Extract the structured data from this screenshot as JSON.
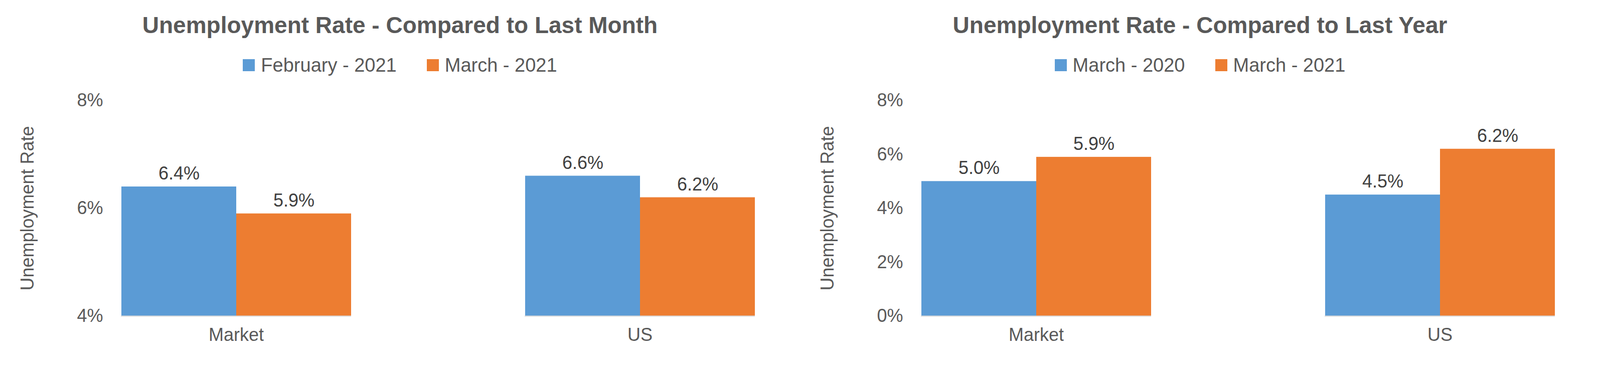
{
  "chart_data": [
    {
      "type": "bar",
      "title": "Unemployment Rate - Compared to Last Month",
      "y_label": "Unemployment Rate",
      "categories": [
        "Market",
        "US"
      ],
      "series": [
        {
          "name": "February - 2021",
          "color": "#5b9bd5",
          "values": [
            6.4,
            6.6
          ],
          "value_labels": [
            "6.4%",
            "6.6%"
          ]
        },
        {
          "name": "March - 2021",
          "color": "#ed7d31",
          "values": [
            5.9,
            6.2
          ],
          "value_labels": [
            "5.9%",
            "6.2%"
          ]
        }
      ],
      "ylim": [
        4,
        8
      ],
      "yticks": [
        {
          "value": 4,
          "label": "4%"
        },
        {
          "value": 6,
          "label": "6%"
        },
        {
          "value": 8,
          "label": "8%"
        }
      ],
      "grid": false,
      "legend": "top",
      "data_labels": true
    },
    {
      "type": "bar",
      "title": "Unemployment Rate - Compared to Last Year",
      "y_label": "Unemployment Rate",
      "categories": [
        "Market",
        "US"
      ],
      "series": [
        {
          "name": "March - 2020",
          "color": "#5b9bd5",
          "values": [
            5.0,
            4.5
          ],
          "value_labels": [
            "5.0%",
            "4.5%"
          ]
        },
        {
          "name": "March - 2021",
          "color": "#ed7d31",
          "values": [
            5.9,
            6.2
          ],
          "value_labels": [
            "5.9%",
            "6.2%"
          ]
        }
      ],
      "ylim": [
        0,
        8
      ],
      "yticks": [
        {
          "value": 0,
          "label": "0%"
        },
        {
          "value": 2,
          "label": "2%"
        },
        {
          "value": 4,
          "label": "4%"
        },
        {
          "value": 6,
          "label": "6%"
        },
        {
          "value": 8,
          "label": "8%"
        }
      ],
      "grid": false,
      "legend": "top",
      "data_labels": true
    }
  ]
}
